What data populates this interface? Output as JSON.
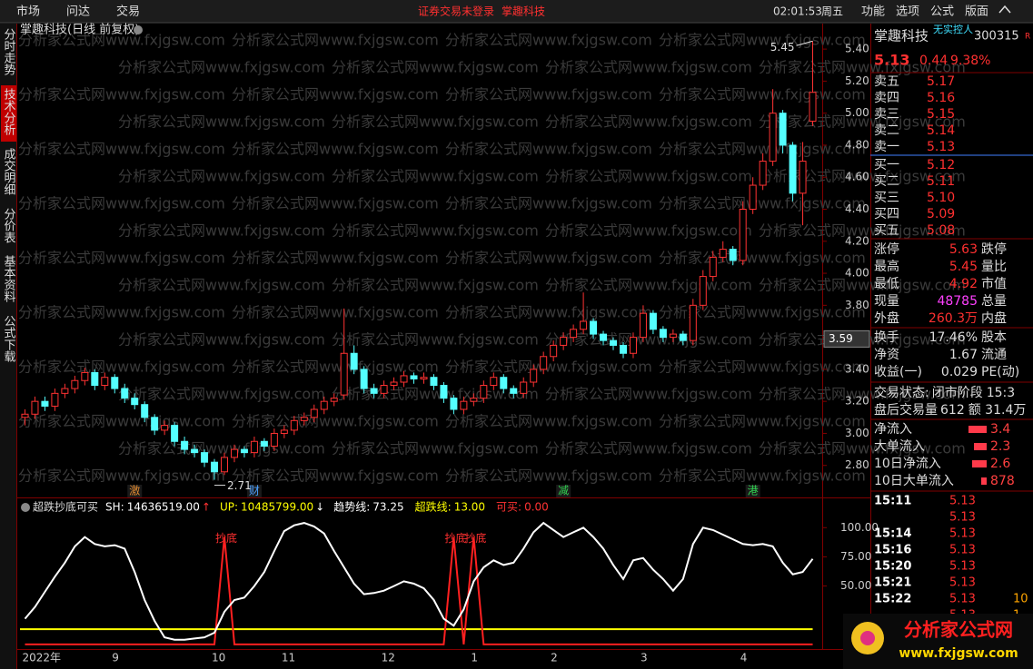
{
  "top_bar": {
    "menu_left": [
      "市场",
      "问达",
      "交易"
    ],
    "notice": "证券交易未登录",
    "stock": "掌趣科技",
    "time": "02:01:53",
    "weekday": "周五",
    "menu_right": [
      "功能",
      "选项",
      "公式",
      "版面"
    ]
  },
  "side_tabs": [
    "分时走势",
    "技术分析",
    "成交明细",
    "分价表",
    "基本资料",
    "公式下载"
  ],
  "active_tab": "技术分析",
  "watermark": "分析家公式网www.fxjgsw.com",
  "price_chart": {
    "title": "掌趣科技(日线 前复权)",
    "categories": [
      "2022年",
      null,
      null,
      null,
      null,
      null,
      null,
      null,
      null,
      "9",
      null,
      null,
      null,
      null,
      null,
      null,
      null,
      null,
      null,
      "10",
      null,
      null,
      null,
      null,
      null,
      null,
      "11",
      null,
      null,
      null,
      null,
      null,
      null,
      null,
      null,
      null,
      "12",
      null,
      null,
      null,
      null,
      null,
      null,
      null,
      null,
      "1",
      null,
      null,
      null,
      null,
      null,
      null,
      null,
      "2",
      null,
      null,
      null,
      null,
      null,
      null,
      null,
      null,
      "3",
      null,
      null,
      null,
      null,
      null,
      null,
      null,
      null,
      null,
      "4",
      null,
      null,
      null,
      null,
      null,
      null,
      null
    ],
    "open": [
      3.1,
      3.12,
      3.2,
      3.17,
      3.25,
      3.28,
      3.33,
      3.38,
      3.3,
      3.35,
      3.28,
      3.22,
      3.18,
      3.1,
      3.02,
      3.05,
      2.95,
      2.9,
      2.88,
      2.82,
      2.76,
      2.85,
      2.9,
      2.88,
      2.95,
      2.92,
      3.0,
      3.02,
      3.08,
      3.1,
      3.15,
      3.2,
      3.24,
      3.5,
      3.4,
      3.28,
      3.25,
      3.3,
      3.32,
      3.36,
      3.34,
      3.35,
      3.3,
      3.22,
      3.15,
      3.2,
      3.22,
      3.3,
      3.35,
      3.28,
      3.25,
      3.32,
      3.4,
      3.48,
      3.55,
      3.6,
      3.65,
      3.7,
      3.62,
      3.58,
      3.55,
      3.5,
      3.6,
      3.75,
      3.65,
      3.6,
      3.62,
      3.58,
      3.8,
      3.98,
      4.1,
      4.15,
      4.08,
      4.4,
      4.55,
      4.7,
      5.0,
      4.8,
      4.5,
      4.95
    ],
    "high": [
      3.15,
      3.23,
      3.23,
      3.28,
      3.31,
      3.36,
      3.41,
      3.4,
      3.38,
      3.37,
      3.31,
      3.25,
      3.2,
      3.12,
      3.08,
      3.07,
      2.98,
      2.93,
      2.9,
      2.84,
      2.88,
      2.93,
      2.92,
      2.98,
      2.97,
      3.03,
      3.05,
      3.11,
      3.13,
      3.18,
      3.23,
      3.25,
      3.78,
      3.55,
      3.42,
      3.31,
      3.33,
      3.35,
      3.39,
      3.38,
      3.38,
      3.37,
      3.32,
      3.24,
      3.23,
      3.25,
      3.33,
      3.38,
      3.37,
      3.3,
      3.35,
      3.43,
      3.51,
      3.58,
      3.63,
      3.68,
      3.88,
      3.72,
      3.64,
      3.6,
      3.57,
      3.63,
      3.8,
      3.77,
      3.67,
      3.65,
      3.64,
      3.84,
      4.02,
      4.14,
      4.2,
      4.17,
      4.45,
      4.6,
      4.75,
      5.15,
      5.02,
      4.82,
      4.82,
      5.45
    ],
    "low": [
      3.05,
      3.09,
      3.14,
      3.14,
      3.22,
      3.25,
      3.3,
      3.27,
      3.27,
      3.25,
      3.19,
      3.15,
      3.07,
      2.99,
      2.99,
      2.92,
      2.87,
      2.85,
      2.79,
      2.71,
      2.74,
      2.82,
      2.85,
      2.85,
      2.89,
      2.89,
      2.97,
      2.99,
      3.05,
      3.07,
      3.12,
      3.17,
      3.21,
      3.37,
      3.25,
      3.22,
      3.22,
      3.27,
      3.29,
      3.31,
      3.31,
      3.27,
      3.19,
      3.12,
      3.12,
      3.17,
      3.19,
      3.27,
      3.25,
      3.22,
      3.22,
      3.29,
      3.37,
      3.45,
      3.52,
      3.57,
      3.62,
      3.59,
      3.55,
      3.52,
      3.47,
      3.47,
      3.57,
      3.62,
      3.57,
      3.57,
      3.55,
      3.55,
      3.77,
      3.95,
      4.07,
      4.05,
      4.05,
      4.37,
      4.52,
      4.67,
      4.75,
      4.45,
      4.3,
      4.92
    ],
    "close": [
      3.12,
      3.2,
      3.17,
      3.25,
      3.28,
      3.33,
      3.38,
      3.3,
      3.35,
      3.28,
      3.22,
      3.18,
      3.1,
      3.02,
      3.05,
      2.95,
      2.9,
      2.88,
      2.82,
      2.76,
      2.85,
      2.9,
      2.88,
      2.95,
      2.92,
      3.0,
      3.02,
      3.08,
      3.1,
      3.15,
      3.2,
      3.22,
      3.5,
      3.4,
      3.28,
      3.25,
      3.3,
      3.32,
      3.36,
      3.34,
      3.35,
      3.3,
      3.22,
      3.15,
      3.2,
      3.22,
      3.3,
      3.35,
      3.28,
      3.25,
      3.32,
      3.4,
      3.48,
      3.55,
      3.6,
      3.65,
      3.7,
      3.62,
      3.58,
      3.55,
      3.5,
      3.6,
      3.75,
      3.65,
      3.6,
      3.62,
      3.58,
      3.8,
      3.98,
      4.1,
      4.15,
      4.08,
      4.4,
      4.55,
      4.7,
      5.0,
      4.8,
      4.5,
      4.7,
      5.13
    ],
    "events": [
      null,
      null,
      null,
      null,
      null,
      null,
      null,
      null,
      null,
      null,
      null,
      {
        "label": "激",
        "color": "#e08a30"
      },
      null,
      null,
      null,
      null,
      null,
      null,
      null,
      null,
      null,
      null,
      null,
      {
        "label": "财",
        "color": "#4aa0ff"
      },
      null,
      null,
      null,
      null,
      null,
      null,
      null,
      null,
      null,
      null,
      null,
      null,
      null,
      null,
      null,
      null,
      null,
      null,
      null,
      null,
      null,
      null,
      null,
      null,
      null,
      null,
      null,
      null,
      null,
      null,
      {
        "label": "减",
        "color": "#30d050"
      },
      null,
      null,
      null,
      null,
      null,
      null,
      null,
      null,
      null,
      null,
      null,
      null,
      null,
      null,
      null,
      null,
      null,
      null,
      {
        "label": "港",
        "color": "#30d050"
      },
      null,
      null,
      null,
      null,
      null,
      null
    ],
    "up_color": "#ff3232",
    "down_color": "#54ffff",
    "ylim": [
      2.6,
      5.48
    ],
    "yticks": [
      {
        "value": 2.8,
        "label": "2.80"
      },
      {
        "value": 3,
        "label": "3.00"
      },
      {
        "value": 3.2,
        "label": "3.20"
      },
      {
        "value": 3.4,
        "label": "3.40"
      },
      {
        "value": 3.6,
        "label": "3.60"
      },
      {
        "value": 3.8,
        "label": "3.80"
      },
      {
        "value": 4,
        "label": "4.00"
      },
      {
        "value": 4.2,
        "label": "4.20"
      },
      {
        "value": 4.4,
        "label": "4.40"
      },
      {
        "value": 4.6,
        "label": "4.60"
      },
      {
        "value": 4.8,
        "label": "4.80"
      },
      {
        "value": 5,
        "label": "5.00"
      },
      {
        "value": 5.2,
        "label": "5.20"
      },
      {
        "value": 5.4,
        "label": "5.40"
      }
    ],
    "cursor_price": 3.59
  },
  "indicator": {
    "title": "超跌抄底可买",
    "legend": [
      {
        "name": "SH:",
        "value_label": "14636519.00",
        "arrow": "↑",
        "color": "#ffffff",
        "arrow_color": "#ff3232"
      },
      {
        "name": "UP:",
        "value_label": "10485799.00",
        "arrow": "↓",
        "color": "#ffff00",
        "arrow_color": "#ffffff"
      },
      {
        "name": "趋势线:",
        "value_label": "73.25",
        "color": "#ffffff"
      },
      {
        "name": "超跌线:",
        "value_label": "13.00",
        "color": "#ffff00"
      },
      {
        "name": "可买:",
        "value_label": "0.00",
        "color": "#ff3232"
      }
    ],
    "trend": [
      22,
      32,
      45,
      58,
      70,
      84,
      92,
      86,
      84,
      85,
      82,
      62,
      38,
      20,
      6,
      4,
      4,
      5,
      6,
      10,
      28,
      38,
      40,
      50,
      62,
      80,
      97,
      102,
      104,
      101,
      95,
      80,
      66,
      52,
      43,
      44,
      46,
      50,
      54,
      52,
      48,
      38,
      22,
      16,
      30,
      54,
      66,
      72,
      68,
      70,
      82,
      96,
      104,
      98,
      92,
      96,
      100,
      92,
      82,
      68,
      56,
      72,
      74,
      64,
      56,
      46,
      56,
      86,
      100,
      98,
      94,
      90,
      86,
      85,
      86,
      84,
      70,
      60,
      62,
      73.25
    ],
    "buy": [
      0,
      0,
      0,
      0,
      0,
      0,
      0,
      0,
      0,
      0,
      0,
      0,
      0,
      0,
      0,
      0,
      0,
      0,
      0,
      0,
      92,
      0,
      0,
      0,
      0,
      0,
      0,
      0,
      0,
      0,
      0,
      0,
      0,
      0,
      0,
      0,
      0,
      0,
      0,
      0,
      0,
      0,
      0,
      92,
      0,
      92,
      0,
      0,
      0,
      0,
      0,
      0,
      0,
      0,
      0,
      0,
      0,
      0,
      0,
      0,
      0,
      0,
      0,
      0,
      0,
      0,
      0,
      0,
      0,
      0,
      0,
      0,
      0,
      0,
      0,
      0,
      0,
      0,
      0,
      0
    ],
    "oversold": 13,
    "buy_label": "抄底",
    "ylim": [
      -4,
      122
    ],
    "yticks": [
      {
        "value": 50,
        "label": "50.00"
      },
      {
        "value": 75,
        "label": "75.00"
      },
      {
        "value": 100,
        "label": "100.00"
      }
    ]
  },
  "quote": {
    "name": "掌趣科技",
    "owner": "无实控人",
    "code": "300315",
    "flag": "R",
    "price": "5.13",
    "change": "0.44",
    "pct": "9.38%",
    "asks": [
      {
        "label": "卖五",
        "price": "5.17"
      },
      {
        "label": "卖四",
        "price": "5.16"
      },
      {
        "label": "卖三",
        "price": "5.15"
      },
      {
        "label": "卖二",
        "price": "5.14"
      },
      {
        "label": "卖一",
        "price": "5.13"
      }
    ],
    "bids": [
      {
        "label": "买一",
        "price": "5.12"
      },
      {
        "label": "买二",
        "price": "5.11"
      },
      {
        "label": "买三",
        "price": "5.10"
      },
      {
        "label": "买四",
        "price": "5.09"
      },
      {
        "label": "买五",
        "price": "5.08"
      }
    ],
    "stats": [
      {
        "label": "涨停",
        "value": "5.63",
        "label2": "跌停"
      },
      {
        "label": "最高",
        "value": "5.45",
        "label2": "量比"
      },
      {
        "label": "最低",
        "value": "4.92",
        "label2": "市值"
      },
      {
        "label": "现量",
        "value": "48785",
        "label2": "总量",
        "color": "#ff40ff"
      },
      {
        "label": "外盘",
        "value": "260.3万",
        "label2": "内盘"
      }
    ],
    "stats2": [
      {
        "label": "换手",
        "value": "17.46%",
        "label2": "股本"
      },
      {
        "label": "净资",
        "value": "1.67",
        "label2": "流通"
      },
      {
        "label": "收益(一)",
        "value": "0.029",
        "label2": "PE(动)"
      }
    ],
    "status": [
      {
        "label": "交易状态:",
        "value": "闭市阶段",
        "extra": "15:3"
      },
      {
        "label": "盘后交易量",
        "value": "612",
        "extra": "额 31.4万"
      }
    ],
    "flows": [
      {
        "label": "净流入",
        "value": "3.4"
      },
      {
        "label": "大单流入",
        "value": "2.3"
      },
      {
        "label": "10日净流入",
        "value": "2.6"
      },
      {
        "label": "10日大单流入",
        "value": "878"
      }
    ]
  },
  "trades": [
    {
      "time": "15:11",
      "price": "5.13"
    },
    {
      "price": "5.13"
    },
    {
      "time": "15:14",
      "price": "5.13"
    },
    {
      "time": "15:16",
      "price": "5.13"
    },
    {
      "time": "15:20",
      "price": "5.13"
    },
    {
      "time": "15:21",
      "price": "5.13"
    },
    {
      "time": "15:22",
      "price": "5.13",
      "volume": "10"
    },
    {
      "price": "5.13",
      "volume": "1"
    }
  ],
  "logo": {
    "name": "分析家公式网",
    "url": "www.fxjgsw.com"
  }
}
